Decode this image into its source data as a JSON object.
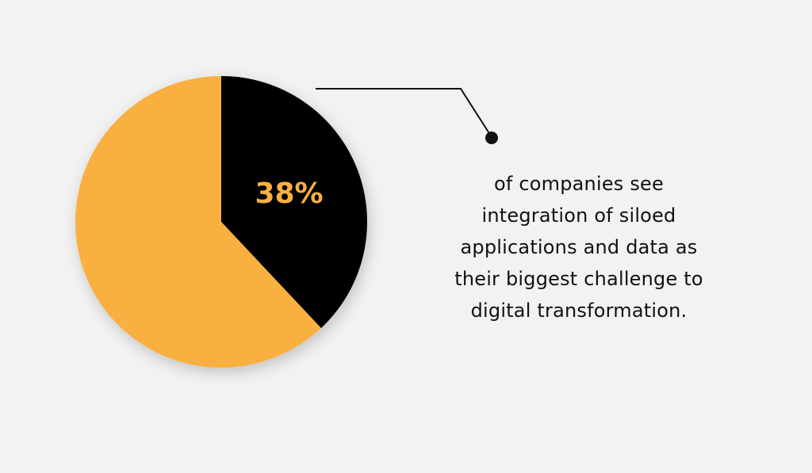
{
  "chart_data": {
    "type": "pie",
    "slices": [
      {
        "value": 38,
        "color": "#000000",
        "label": "38%"
      },
      {
        "value": 62,
        "color": "#f9b040",
        "label": ""
      }
    ],
    "data_label_color": "#f9b040",
    "callout": {
      "lines": [
        "of companies see",
        "integration of siloed",
        "applications and data as",
        "their biggest challenge to",
        "digital transformation."
      ],
      "line_color": "#111111"
    }
  }
}
